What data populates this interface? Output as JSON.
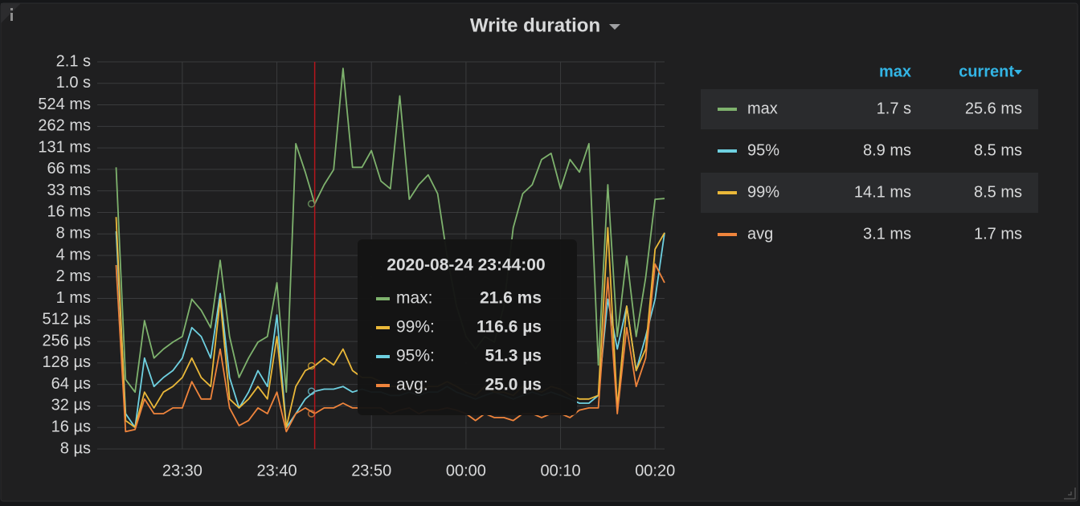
{
  "chart_data": {
    "type": "line",
    "title": "Write duration",
    "x": [
      "23:23",
      "23:24",
      "23:25",
      "23:26",
      "23:27",
      "23:28",
      "23:29",
      "23:30",
      "23:31",
      "23:32",
      "23:33",
      "23:34",
      "23:35",
      "23:36",
      "23:37",
      "23:38",
      "23:39",
      "23:40",
      "23:41",
      "23:42",
      "23:43",
      "23:44",
      "23:45",
      "23:46",
      "23:47",
      "23:48",
      "23:49",
      "23:50",
      "23:51",
      "23:52",
      "23:53",
      "23:54",
      "23:55",
      "23:56",
      "23:57",
      "23:58",
      "23:59",
      "00:00",
      "00:01",
      "00:02",
      "00:03",
      "00:04",
      "00:05",
      "00:06",
      "00:07",
      "00:08",
      "00:09",
      "00:10",
      "00:11",
      "00:12",
      "00:13",
      "00:14",
      "00:15",
      "00:16",
      "00:17",
      "00:18",
      "00:19",
      "00:20",
      "00:21"
    ],
    "xlim": [
      "23:21",
      "00:21"
    ],
    "xticks": [
      "23:30",
      "23:40",
      "23:50",
      "00:00",
      "00:10",
      "00:20"
    ],
    "ylim": [
      8,
      2097152
    ],
    "log_base": 2,
    "grid": true,
    "yticks": [
      {
        "value": 8,
        "label": "8 µs"
      },
      {
        "value": 16,
        "label": "16 µs"
      },
      {
        "value": 32,
        "label": "32 µs"
      },
      {
        "value": 64,
        "label": "64 µs"
      },
      {
        "value": 128,
        "label": "128 µs"
      },
      {
        "value": 256,
        "label": "256 µs"
      },
      {
        "value": 512,
        "label": "512 µs"
      },
      {
        "value": 1024,
        "label": "1 ms"
      },
      {
        "value": 2048,
        "label": "2 ms"
      },
      {
        "value": 4096,
        "label": "4 ms"
      },
      {
        "value": 8192,
        "label": "8 ms"
      },
      {
        "value": 16384,
        "label": "16 ms"
      },
      {
        "value": 32768,
        "label": "33 ms"
      },
      {
        "value": 65536,
        "label": "66 ms"
      },
      {
        "value": 131072,
        "label": "131 ms"
      },
      {
        "value": 262144,
        "label": "262 ms"
      },
      {
        "value": 524288,
        "label": "524 ms"
      },
      {
        "value": 1048576,
        "label": "1.0 s"
      },
      {
        "value": 2097152,
        "label": "2.1 s"
      }
    ],
    "series": [
      {
        "name": "max",
        "color": "#7eb26d",
        "values": [
          70000,
          75,
          50,
          500,
          150,
          200,
          250,
          300,
          1000,
          700,
          400,
          3500,
          300,
          80,
          150,
          250,
          300,
          1700,
          50,
          150000,
          60000,
          21600,
          40000,
          65000,
          1700000,
          70000,
          70000,
          120000,
          45000,
          35000,
          700000,
          25000,
          40000,
          55000,
          30000,
          4000,
          800,
          300,
          200,
          300,
          250,
          800,
          10000,
          30000,
          40000,
          90000,
          110000,
          35000,
          90000,
          60000,
          150000,
          120,
          40000,
          300,
          4000,
          300,
          2000,
          25000,
          25600
        ]
      },
      {
        "name": "95%",
        "color": "#6ed0e0",
        "values": [
          8900,
          25,
          16,
          150,
          60,
          80,
          100,
          150,
          400,
          300,
          150,
          1200,
          80,
          30,
          50,
          100,
          60,
          600,
          16,
          25,
          40,
          51.3,
          55,
          55,
          60,
          50,
          55,
          50,
          50,
          45,
          45,
          50,
          45,
          50,
          50,
          60,
          50,
          45,
          40,
          45,
          50,
          45,
          40,
          45,
          50,
          45,
          50,
          45,
          40,
          35,
          35,
          45,
          1000,
          200,
          800,
          100,
          300,
          1000,
          8500
        ]
      },
      {
        "name": "99%",
        "color": "#eab839",
        "values": [
          14100,
          20,
          16,
          50,
          30,
          50,
          60,
          80,
          150,
          80,
          60,
          1000,
          40,
          30,
          40,
          60,
          40,
          300,
          16,
          60,
          100,
          116.6,
          150,
          120,
          200,
          100,
          80,
          80,
          70,
          60,
          60,
          60,
          55,
          60,
          60,
          70,
          60,
          50,
          45,
          60,
          50,
          50,
          45,
          60,
          55,
          50,
          60,
          55,
          45,
          40,
          40,
          45,
          10000,
          30,
          800,
          100,
          200,
          5000,
          8500
        ]
      },
      {
        "name": "avg",
        "color": "#ef843c",
        "values": [
          3000,
          14,
          15,
          40,
          25,
          25,
          30,
          30,
          70,
          40,
          40,
          200,
          30,
          17,
          20,
          30,
          25,
          50,
          14,
          25,
          30,
          25,
          30,
          30,
          35,
          30,
          30,
          30,
          30,
          25,
          28,
          30,
          25,
          28,
          28,
          30,
          28,
          25,
          20,
          25,
          22,
          22,
          20,
          25,
          25,
          22,
          25,
          25,
          22,
          28,
          30,
          30,
          2000,
          25,
          400,
          60,
          150,
          3100,
          1700
        ]
      }
    ],
    "legend_table": {
      "columns": [
        "max",
        "current"
      ],
      "rows": [
        [
          "1.7 s",
          "25.6 ms"
        ],
        [
          "8.9 ms",
          "8.5 ms"
        ],
        [
          "14.1 ms",
          "8.5 ms"
        ],
        [
          "3.1 ms",
          "1.7 ms"
        ]
      ]
    },
    "tooltip": {
      "time": "2020-08-24 23:44:00",
      "x": "23:44",
      "index": 21,
      "items": [
        {
          "series": 0,
          "name": "max:",
          "value_label": "21.6 ms"
        },
        {
          "series": 2,
          "name": "99%:",
          "value_label": "116.6 µs"
        },
        {
          "series": 1,
          "name": "95%:",
          "value_label": "51.3 µs"
        },
        {
          "series": 3,
          "name": "avg:",
          "value_label": "25.0 µs"
        }
      ]
    }
  }
}
